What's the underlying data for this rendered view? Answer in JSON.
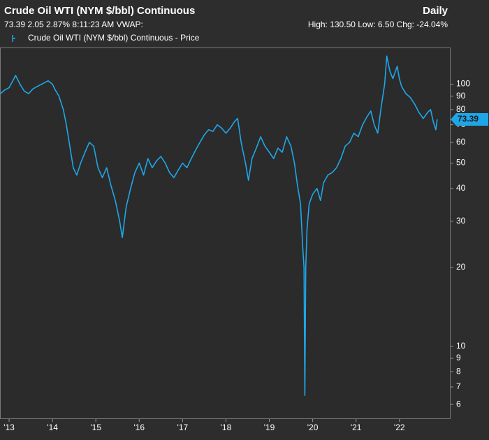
{
  "chart_data": {
    "type": "line",
    "title": "Crude Oil WTI (NYM $/bbl) Continuous",
    "frequency": "Daily",
    "quote_line": "73.39 2.05 2.87% 8:11:23 AM VWAP:",
    "range_line": "High: 130.50 Low: 6.50 Chg: -24.04%",
    "last_price": 73.39,
    "log_scale": true,
    "x": [
      2012.8,
      2012.9,
      2013.0,
      2013.1,
      2013.15,
      2013.25,
      2013.35,
      2013.45,
      2013.55,
      2013.65,
      2013.8,
      2013.9,
      2014.0,
      2014.05,
      2014.15,
      2014.25,
      2014.32,
      2014.4,
      2014.48,
      2014.56,
      2014.65,
      2014.75,
      2014.85,
      2014.95,
      2015.05,
      2015.15,
      2015.25,
      2015.35,
      2015.45,
      2015.55,
      2015.61,
      2015.7,
      2015.8,
      2015.9,
      2016.0,
      2016.1,
      2016.2,
      2016.3,
      2016.4,
      2016.5,
      2016.6,
      2016.7,
      2016.8,
      2016.9,
      2017.0,
      2017.1,
      2017.2,
      2017.3,
      2017.4,
      2017.5,
      2017.6,
      2017.7,
      2017.8,
      2017.9,
      2018.0,
      2018.1,
      2018.2,
      2018.27,
      2018.35,
      2018.45,
      2018.52,
      2018.6,
      2018.7,
      2018.8,
      2018.9,
      2019.0,
      2019.1,
      2019.2,
      2019.3,
      2019.4,
      2019.5,
      2019.58,
      2019.65,
      2019.72,
      2019.77,
      2019.8,
      2019.82,
      2019.84,
      2019.87,
      2019.92,
      2020.0,
      2020.1,
      2020.18,
      2020.25,
      2020.35,
      2020.45,
      2020.55,
      2020.65,
      2020.75,
      2020.85,
      2020.95,
      2021.05,
      2021.15,
      2021.25,
      2021.34,
      2021.42,
      2021.5,
      2021.58,
      2021.66,
      2021.71,
      2021.78,
      2021.85,
      2021.95,
      2022.0,
      2022.05,
      2022.15,
      2022.25,
      2022.35,
      2022.45,
      2022.55,
      2022.65,
      2022.72,
      2022.78,
      2022.84,
      2022.87
    ],
    "series": [
      {
        "name": "Crude Oil WTI (NYM $/bbl) Continuous - Price",
        "color": "#1ea7e8",
        "values": [
          92,
          95,
          97,
          104,
          108,
          100,
          94,
          92,
          96,
          98,
          101,
          103,
          100,
          96,
          90,
          80,
          70,
          58,
          48,
          45,
          50,
          55,
          60,
          58,
          48,
          44,
          48,
          41,
          36,
          30,
          26,
          34,
          40,
          46,
          50,
          45,
          52,
          48,
          51,
          53,
          50,
          46,
          44,
          47,
          50,
          48,
          52,
          56,
          60,
          64,
          67,
          66,
          70,
          68,
          65,
          68,
          72,
          74,
          60,
          50,
          43,
          52,
          57,
          63,
          58,
          55,
          52,
          57,
          55,
          63,
          58,
          50,
          41,
          35,
          24,
          20,
          6.5,
          20,
          28,
          35,
          38,
          40,
          36,
          42,
          45,
          46,
          48,
          52,
          58,
          60,
          65,
          63,
          70,
          75,
          79,
          70,
          65,
          82,
          100,
          128,
          112,
          105,
          117,
          105,
          98,
          92,
          89,
          84,
          78,
          74,
          78,
          80,
          72,
          67,
          73.39
        ]
      }
    ],
    "xlim": [
      2012.79,
      2023.18
    ],
    "xticks": [
      {
        "value": 2013,
        "label": "'13"
      },
      {
        "value": 2014,
        "label": "'14"
      },
      {
        "value": 2015,
        "label": "'15"
      },
      {
        "value": 2016,
        "label": "'16"
      },
      {
        "value": 2017,
        "label": "'17"
      },
      {
        "value": 2018,
        "label": "'18"
      },
      {
        "value": 2019,
        "label": "'19"
      },
      {
        "value": 2020,
        "label": "'20"
      },
      {
        "value": 2021,
        "label": "'21"
      },
      {
        "value": 2022,
        "label": "'22"
      }
    ],
    "ylim": [
      5.28,
      138
    ],
    "yticks": [
      6,
      7,
      8,
      9,
      10,
      20,
      30,
      40,
      50,
      60,
      70,
      80,
      90,
      100
    ]
  }
}
